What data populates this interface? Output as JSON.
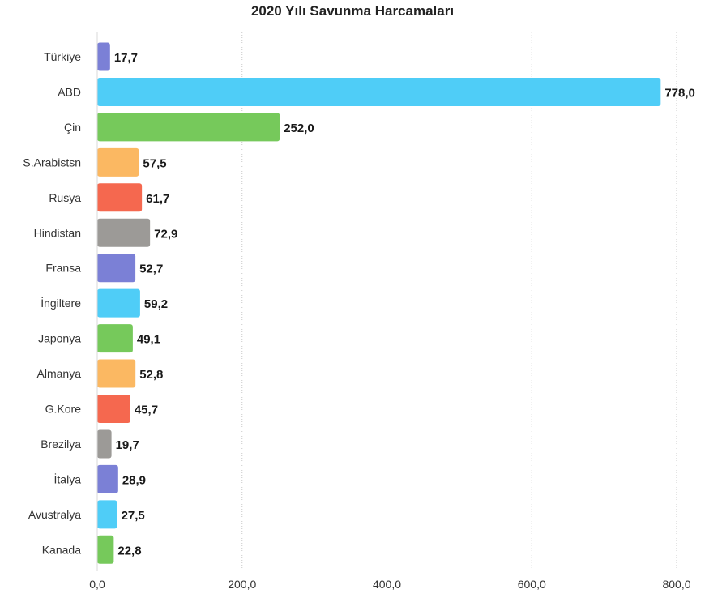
{
  "chart_data": {
    "type": "bar",
    "orientation": "horizontal",
    "title": "2020 Yılı Savunma Harcamaları",
    "xlabel": "",
    "ylabel": "",
    "categories": [
      "Türkiye",
      "ABD",
      "Çin",
      "S.Arabistsn",
      "Rusya",
      "Hindistan",
      "Fransa",
      "İngiltere",
      "Japonya",
      "Almanya",
      "G.Kore",
      "Brezilya",
      "İtalya",
      "Avustralya",
      "Kanada"
    ],
    "values": [
      17.7,
      778.0,
      252.0,
      57.5,
      61.7,
      72.9,
      52.7,
      59.2,
      49.1,
      52.8,
      45.7,
      19.7,
      28.9,
      27.5,
      22.8
    ],
    "value_labels": [
      "17,7",
      "778,0",
      "252,0",
      "57,5",
      "61,7",
      "72,9",
      "52,7",
      "59,2",
      "49,1",
      "52,8",
      "45,7",
      "19,7",
      "28,9",
      "27,5",
      "22,8"
    ],
    "colors": [
      "#7b80d6",
      "#4fcdf7",
      "#76c95b",
      "#fbb862",
      "#f5684f",
      "#9c9a97",
      "#7b80d6",
      "#4fcdf7",
      "#76c95b",
      "#fbb862",
      "#f5684f",
      "#9c9a97",
      "#7b80d6",
      "#4fcdf7",
      "#76c95b"
    ],
    "xlim": [
      0,
      800
    ],
    "xticks": [
      0,
      200,
      400,
      600,
      800
    ],
    "xtick_labels": [
      "0,0",
      "200,0",
      "400,0",
      "600,0",
      "800,0"
    ],
    "grid": "vertical dotted",
    "legend": "none"
  }
}
